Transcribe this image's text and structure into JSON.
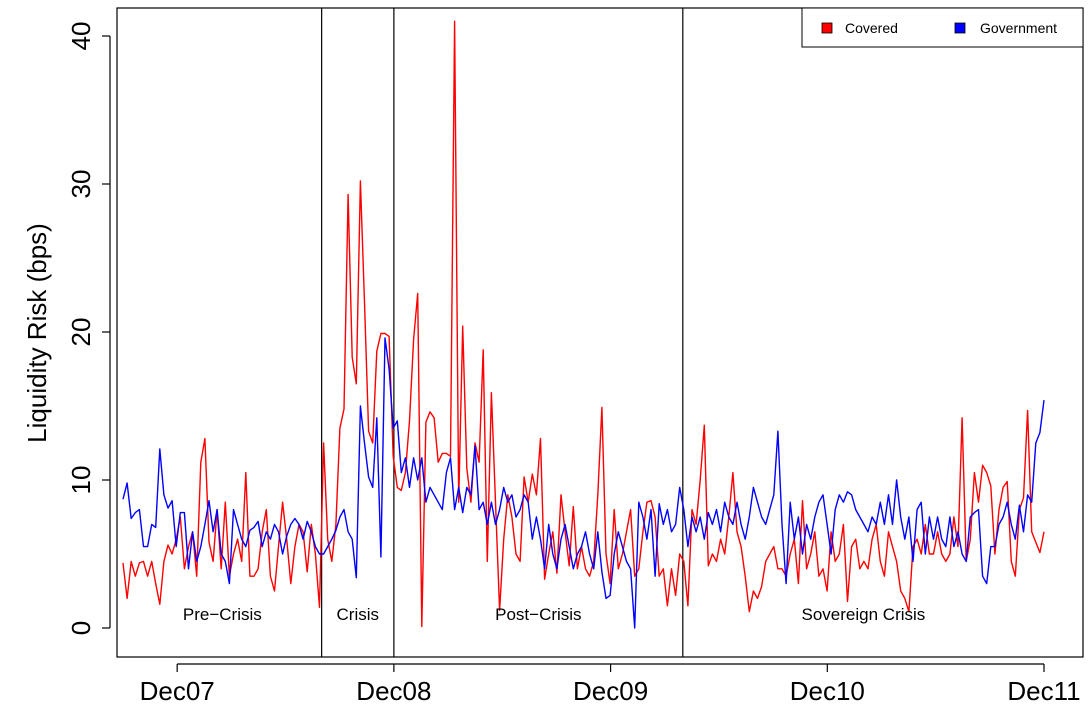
{
  "chart_data": {
    "type": "line",
    "title": "",
    "xlabel": "",
    "ylabel": "Liquidity Risk (bps)",
    "ylim": [
      0,
      41
    ],
    "y_ticks": [
      0,
      10,
      20,
      30,
      40
    ],
    "x_ticks": [
      {
        "label": "Dec07",
        "x": "2007-12"
      },
      {
        "label": "Dec08",
        "x": "2008-12"
      },
      {
        "label": "Dec09",
        "x": "2009-12"
      },
      {
        "label": "Dec10",
        "x": "2010-12"
      },
      {
        "label": "Dec11",
        "x": "2011-12"
      }
    ],
    "xlim": [
      "2007-09",
      "2011-12"
    ],
    "x_start": "2007-09",
    "x_end": "2011-12",
    "grid": false,
    "legend_position": "top-right",
    "periods": [
      {
        "label": "Pre−Crisis",
        "from": "2007-09",
        "to": "2008-08",
        "boundary": "2008-08"
      },
      {
        "label": "Crisis",
        "from": "2008-08",
        "to": "2008-12",
        "boundary": "2008-12"
      },
      {
        "label": "Post−Crisis",
        "from": "2008-12",
        "to": "2010-04",
        "boundary": "2010-04"
      },
      {
        "label": "Sovereign Crisis",
        "from": "2010-04",
        "to": "2011-12",
        "boundary": null
      }
    ],
    "series": [
      {
        "name": "Covered",
        "color": "#ff0000",
        "values": [
          4.4,
          2.0,
          4.5,
          3.5,
          4.4,
          4.5,
          3.5,
          4.5,
          3.0,
          1.6,
          4.5,
          5.6,
          5.0,
          6.0,
          7.5,
          4.0,
          5.5,
          6.5,
          3.5,
          11.2,
          12.8,
          5.8,
          4.5,
          8.0,
          4.0,
          8.5,
          3.5,
          5.0,
          6.0,
          4.5,
          10.5,
          3.5,
          3.5,
          4.0,
          6.5,
          8.0,
          3.5,
          2.5,
          5.5,
          8.5,
          6.0,
          3.0,
          5.5,
          7.0,
          6.5,
          3.8,
          7.0,
          5.0,
          1.4,
          12.5,
          6.0,
          4.5,
          7.0,
          13.5,
          14.8,
          29.3,
          18.3,
          16.5,
          30.2,
          22.0,
          13.3,
          12.5,
          18.7,
          19.9,
          19.9,
          19.7,
          11.6,
          9.5,
          9.3,
          10.5,
          14.0,
          19.5,
          22.6,
          0.1,
          13.9,
          14.6,
          14.2,
          11.2,
          11.8,
          11.8,
          11.6,
          41.0,
          8.5,
          20.4,
          10.8,
          8.5,
          12.5,
          11.2,
          18.8,
          4.5,
          15.9,
          8.5,
          1.2,
          6.0,
          9.0,
          7.5,
          5.0,
          4.5,
          10.2,
          8.5,
          10.4,
          9.0,
          12.8,
          3.3,
          5.0,
          6.5,
          3.7,
          9.0,
          6.5,
          4.2,
          8.2,
          4.0,
          5.5,
          4.0,
          3.5,
          4.5,
          9.0,
          14.9,
          5.0,
          3.0,
          8.0,
          4.0,
          5.0,
          6.5,
          8.0,
          3.5,
          4.0,
          6.5,
          8.5,
          8.6,
          7.5,
          3.5,
          4.0,
          1.5,
          4.0,
          2.2,
          5.0,
          4.5,
          1.5,
          8.0,
          7.0,
          10.0,
          13.7,
          4.2,
          5.0,
          4.5,
          6.0,
          5.0,
          7.5,
          10.5,
          6.5,
          5.5,
          3.5,
          1.1,
          2.5,
          2.0,
          2.8,
          4.5,
          5.0,
          5.5,
          4.0,
          4.0,
          3.5,
          5.0,
          6.0,
          3.0,
          8.6,
          4.0,
          5.0,
          6.5,
          3.5,
          4.0,
          2.5,
          6.5,
          4.5,
          5.0,
          7.0,
          1.8,
          5.5,
          6.0,
          4.0,
          4.5,
          4.0,
          6.0,
          7.0,
          4.5,
          3.5,
          6.5,
          5.5,
          4.5,
          2.5,
          2.0,
          1.1,
          5.5,
          6.0,
          5.0,
          7.0,
          5.0,
          5.0,
          6.5,
          5.0,
          4.5,
          5.0,
          7.5,
          5.5,
          14.2,
          4.5,
          6.0,
          10.5,
          8.5,
          11.0,
          10.5,
          9.6,
          5.0,
          8.0,
          9.5,
          9.9,
          4.5,
          3.5,
          8.0,
          8.8,
          14.7,
          6.5,
          5.8,
          5.1,
          6.5
        ]
      },
      {
        "name": "Government",
        "color": "#0000ff",
        "values": [
          8.7,
          9.8,
          7.4,
          7.8,
          8.0,
          5.5,
          5.5,
          7.0,
          6.8,
          12.1,
          9.0,
          8.1,
          8.6,
          5.5,
          7.8,
          7.8,
          4.0,
          6.5,
          4.5,
          5.5,
          7.0,
          8.6,
          6.5,
          8.0,
          5.0,
          4.5,
          3.0,
          8.0,
          7.0,
          6.0,
          5.5,
          6.6,
          6.8,
          7.2,
          5.5,
          6.5,
          6.0,
          7.0,
          6.5,
          5.0,
          6.2,
          7.0,
          7.4,
          7.0,
          6.0,
          7.2,
          6.5,
          5.5,
          5.0,
          5.0,
          5.5,
          6.0,
          6.6,
          7.5,
          8.0,
          6.5,
          6.0,
          3.4,
          15.0,
          12.5,
          10.2,
          9.5,
          14.2,
          4.8,
          19.6,
          17.5,
          13.5,
          14.0,
          10.5,
          11.5,
          9.5,
          11.5,
          10.0,
          11.5,
          8.5,
          9.5,
          9.0,
          8.5,
          8.0,
          10.5,
          11.5,
          8.0,
          9.5,
          7.8,
          9.5,
          9.0,
          12.3,
          8.0,
          8.5,
          7.0,
          8.5,
          7.0,
          8.0,
          9.5,
          8.5,
          9.0,
          7.5,
          8.0,
          9.0,
          8.5,
          6.0,
          7.5,
          6.0,
          4.0,
          7.0,
          5.0,
          4.0,
          6.0,
          7.0,
          5.5,
          4.0,
          5.0,
          5.5,
          6.5,
          5.0,
          4.0,
          6.5,
          3.8,
          2.0,
          2.2,
          5.0,
          6.5,
          5.5,
          4.5,
          4.0,
          0.0,
          8.5,
          7.5,
          6.0,
          8.0,
          3.5,
          8.4,
          7.0,
          8.0,
          6.5,
          7.0,
          9.5,
          8.0,
          5.5,
          7.5,
          6.5,
          7.5,
          6.0,
          7.8,
          7.0,
          8.0,
          6.5,
          8.5,
          7.5,
          7.0,
          8.5,
          7.0,
          6.0,
          7.5,
          9.5,
          8.5,
          7.5,
          7.0,
          8.0,
          9.0,
          13.3,
          7.0,
          3.0,
          8.5,
          6.0,
          7.5,
          5.0,
          7.0,
          6.0,
          7.5,
          8.5,
          9.0,
          7.0,
          5.0,
          8.0,
          9.0,
          8.5,
          9.2,
          9.0,
          8.0,
          7.5,
          7.0,
          6.5,
          7.5,
          7.0,
          8.5,
          7.0,
          9.0,
          7.0,
          10.0,
          7.5,
          6.0,
          7.5,
          4.5,
          8.0,
          8.5,
          5.0,
          7.5,
          6.0,
          7.5,
          6.0,
          5.5,
          7.5,
          5.5,
          6.5,
          5.0,
          4.5,
          7.5,
          7.8,
          8.0,
          3.5,
          3.0,
          5.5,
          5.5,
          7.0,
          7.5,
          8.5,
          7.0,
          6.0,
          8.3,
          6.5,
          9.0,
          8.5,
          12.5,
          13.2,
          15.4
        ]
      }
    ]
  }
}
